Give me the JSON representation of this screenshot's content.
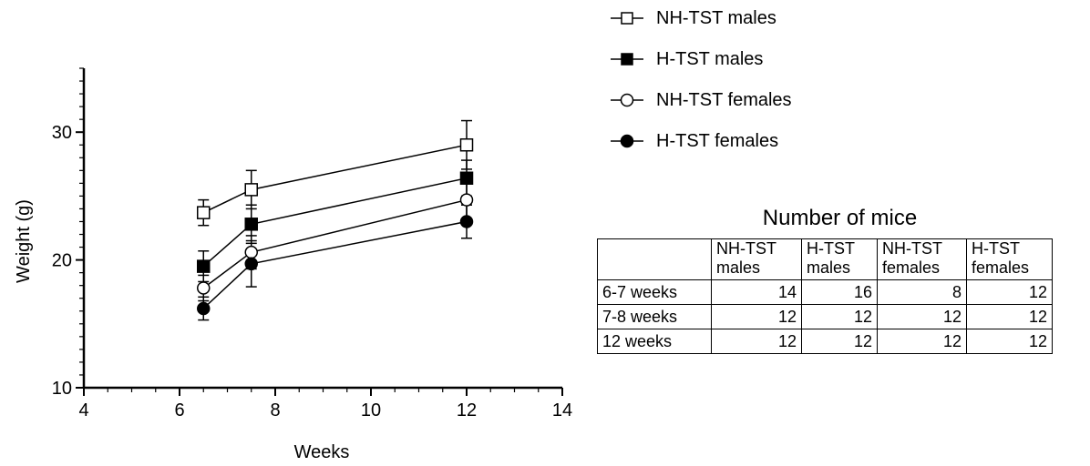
{
  "chart_data": {
    "type": "line",
    "xlabel": "Weeks",
    "ylabel": "Weight (g)",
    "xlim": [
      4,
      14
    ],
    "ylim": [
      10,
      35
    ],
    "xticks": [
      4,
      6,
      8,
      10,
      12,
      14
    ],
    "yticks": [
      10,
      20,
      30
    ],
    "x": [
      6.5,
      7.5,
      12
    ],
    "series": [
      {
        "name": "NH-TST males",
        "marker": "open-square",
        "values": [
          23.7,
          25.5,
          29.0
        ],
        "errors": [
          1.0,
          1.5,
          1.9
        ]
      },
      {
        "name": "H-TST males",
        "marker": "filled-square",
        "values": [
          19.5,
          22.8,
          26.4
        ],
        "errors": [
          1.2,
          1.5,
          1.4
        ]
      },
      {
        "name": "NH-TST females",
        "marker": "open-circle",
        "values": [
          17.8,
          20.6,
          24.7
        ],
        "errors": [
          1.0,
          1.3,
          1.5
        ]
      },
      {
        "name": "H-TST females",
        "marker": "filled-circle",
        "values": [
          16.2,
          19.7,
          23.0
        ],
        "errors": [
          0.9,
          1.8,
          1.3
        ]
      }
    ],
    "legend_position": "right"
  },
  "table": {
    "title": "Number of mice",
    "headers": [
      [
        "",
        ""
      ],
      [
        "NH-TST",
        "males"
      ],
      [
        "H-TST",
        "males"
      ],
      [
        "NH-TST",
        "females"
      ],
      [
        "H-TST",
        "females"
      ]
    ],
    "rows": [
      {
        "label": "6-7 weeks",
        "values": [
          "14",
          "16",
          "8",
          "12"
        ]
      },
      {
        "label": "7-8 weeks",
        "values": [
          "12",
          "12",
          "12",
          "12"
        ]
      },
      {
        "label": "12 weeks",
        "values": [
          "12",
          "12",
          "12",
          "12"
        ]
      }
    ]
  }
}
